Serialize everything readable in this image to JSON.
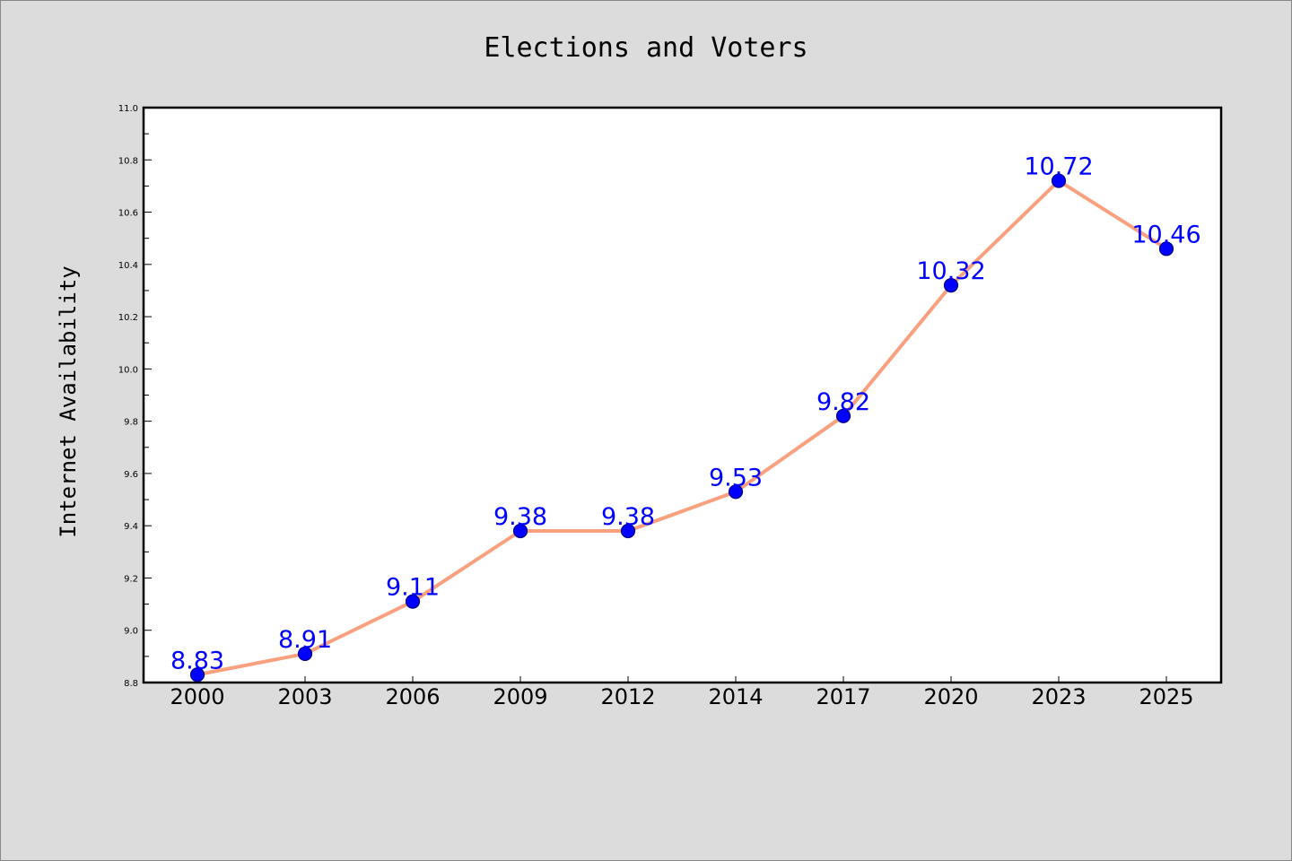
{
  "chart_data": {
    "type": "line",
    "title": "Elections and Voters",
    "xlabel": "",
    "ylabel": "Internet Availability",
    "categories": [
      "2000",
      "2003",
      "2006",
      "2009",
      "2012",
      "2014",
      "2017",
      "2020",
      "2023",
      "2025"
    ],
    "series": [
      {
        "values": [
          8.83,
          8.91,
          9.11,
          9.38,
          9.38,
          9.53,
          9.82,
          10.32,
          10.72,
          10.46
        ]
      }
    ],
    "data_labels": [
      "8.83",
      "8.91",
      "9.11",
      "9.38",
      "9.38",
      "9.53",
      "9.82",
      "10.32",
      "10.72",
      "10.46"
    ],
    "ylim": [
      8.8,
      11.0
    ],
    "yticks": [
      "8.8",
      "9.0",
      "9.2",
      "9.4",
      "9.6",
      "9.8",
      "10.0",
      "10.2",
      "10.4",
      "10.6",
      "10.8",
      "11.0"
    ],
    "grid": false,
    "colors": {
      "line": "#f9a07f",
      "marker_fill": "#0000ff",
      "marker_edge": "#000080",
      "data_label": "#0000ff",
      "background": "#dcdcdc",
      "plot_background": "#ffffff"
    }
  }
}
